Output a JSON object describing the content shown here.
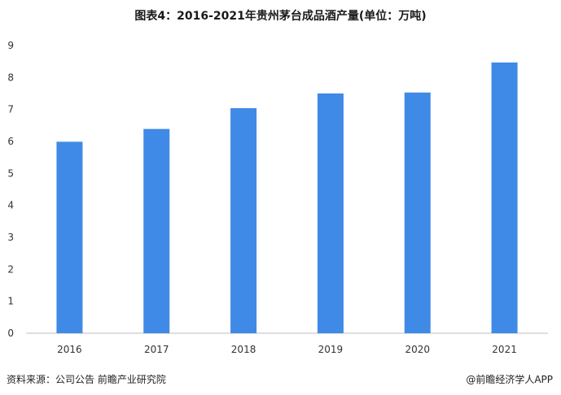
{
  "title": "图表4：2016-2021年贵州茅台成品酒产量(单位：万吨)",
  "source": "资料来源：公司公告 前瞻产业研究院",
  "credit": "@前瞻经济学人APP",
  "chart_data": {
    "type": "bar",
    "title": "图表4：2016-2021年贵州茅台成品酒产量(单位：万吨)",
    "categories": [
      "2016",
      "2017",
      "2018",
      "2019",
      "2020",
      "2021"
    ],
    "series": [
      {
        "values": [
          5.99,
          6.39,
          7.04,
          7.5,
          7.53,
          8.47
        ]
      }
    ],
    "ylim": [
      0,
      9
    ],
    "yticks": [
      0,
      1,
      2,
      3,
      4,
      5,
      6,
      7,
      8,
      9
    ],
    "grid": false,
    "legend": "none",
    "bar_color": "#3f8ae6"
  }
}
